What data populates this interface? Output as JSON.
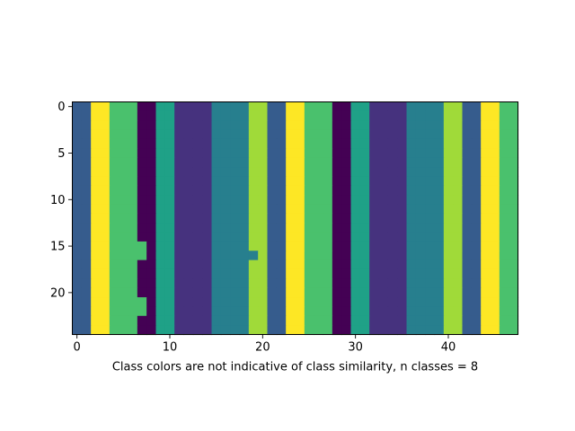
{
  "chart_data": {
    "type": "heatmap",
    "title": "",
    "xlabel": "Class colors are not indicative of class similarity, n classes = 8",
    "ylabel": "",
    "xlim": [
      -0.5,
      47.5
    ],
    "ylim": [
      24.5,
      -0.5
    ],
    "x_ticks": [
      0,
      10,
      20,
      30,
      40
    ],
    "y_ticks": [
      0,
      5,
      10,
      15,
      20
    ],
    "grid": false,
    "n_rows": 25,
    "n_cols": 48,
    "palette": [
      "#440154",
      "#46327e",
      "#365c8d",
      "#277f8e",
      "#1fa187",
      "#4ac16d",
      "#a0da39",
      "#fde725"
    ],
    "base_columns": [
      2,
      2,
      7,
      7,
      5,
      5,
      5,
      0,
      0,
      4,
      4,
      1,
      1,
      1,
      1,
      3,
      3,
      3,
      3,
      6,
      6,
      2,
      2,
      7,
      7,
      5,
      5,
      5,
      0,
      0,
      4,
      4,
      1,
      1,
      1,
      1,
      3,
      3,
      3,
      3,
      6,
      6,
      2,
      2,
      7,
      7,
      5,
      5
    ],
    "overrides": [
      {
        "row": 15,
        "col": 7,
        "cls": 5
      },
      {
        "row": 16,
        "col": 7,
        "cls": 5
      },
      {
        "row": 16,
        "col": 19,
        "cls": 3
      },
      {
        "row": 21,
        "col": 7,
        "cls": 5
      },
      {
        "row": 22,
        "col": 7,
        "cls": 5
      }
    ]
  }
}
